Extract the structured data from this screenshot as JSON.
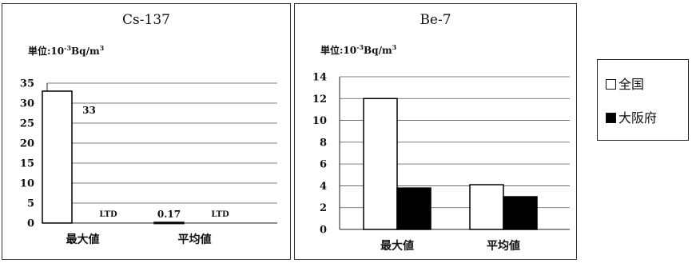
{
  "unit_label": {
    "prefix": "単位:10",
    "exp": "-3",
    "suffix": "Bq/m",
    "exp2": "3"
  },
  "legend": [
    {
      "label": "全国",
      "color": "#ffffff"
    },
    {
      "label": "大阪府",
      "color": "#000000"
    }
  ],
  "chart_data": [
    {
      "type": "bar",
      "title": "Cs-137",
      "categories": [
        "最大値",
        "平均値"
      ],
      "series": [
        {
          "name": "全国",
          "values": [
            33,
            0.17
          ],
          "color": "#ffffff"
        },
        {
          "name": "大阪府",
          "values": [
            null,
            null
          ],
          "color": "#000000"
        }
      ],
      "data_labels": [
        [
          "33",
          "LTD"
        ],
        [
          "0.17",
          "LTD"
        ]
      ],
      "ylim": [
        0,
        35
      ],
      "yticks": [
        0,
        5,
        10,
        15,
        20,
        25,
        30,
        35
      ],
      "grid": true,
      "legend_position": "right"
    },
    {
      "type": "bar",
      "title": "Be-7",
      "categories": [
        "最大値",
        "平均値"
      ],
      "series": [
        {
          "name": "全国",
          "values": [
            12,
            4.1
          ],
          "color": "#ffffff"
        },
        {
          "name": "大阪府",
          "values": [
            3.8,
            3.0
          ],
          "color": "#000000"
        }
      ],
      "ylim": [
        0,
        14
      ],
      "yticks": [
        0,
        2,
        4,
        6,
        8,
        10,
        12,
        14
      ],
      "grid": true,
      "legend_position": "right"
    }
  ]
}
